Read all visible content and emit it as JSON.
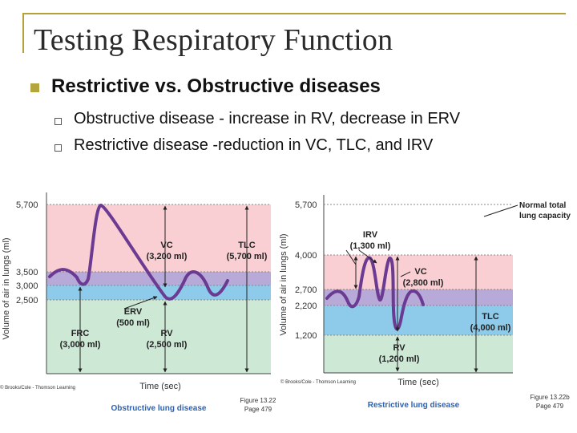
{
  "slide": {
    "title": "Testing Respiratory Function",
    "bullet": "Restrictive vs. Obstructive diseases",
    "sub_bullets": [
      "Obstructive disease - increase in RV, decrease in ERV",
      "Restrictive disease -reduction in VC, TLC, and IRV"
    ]
  },
  "figures": {
    "obstructive": {
      "y_axis_label": "Volume of air in lungs (ml)",
      "ticks": [
        "5,700",
        "3,500",
        "3,000",
        "2,500"
      ],
      "x_axis_label": "Time (sec)",
      "vc": [
        "VC",
        "(3,200 ml)"
      ],
      "tlc": [
        "TLC",
        "(5,700 ml)"
      ],
      "erv": [
        "ERV",
        "(500 ml)"
      ],
      "frc": [
        "FRC",
        "(3,000 ml)"
      ],
      "rv": [
        "RV",
        "(2,500 ml)"
      ],
      "copyright": "© Brooks/Cole - Thomson Learning",
      "caption": "Obstructive lung disease",
      "figure_ref": [
        "Figure 13.22",
        "Page 479"
      ]
    },
    "restrictive": {
      "y_axis_label": "Volume of air in lungs (ml)",
      "ticks": [
        "5,700",
        "4,000",
        "2,700",
        "2,200",
        "1,200"
      ],
      "x_axis_label": "Time (sec)",
      "normal": [
        "Normal total",
        "lung capacity"
      ],
      "irv": [
        "IRV",
        "(1,300 ml)"
      ],
      "vc": [
        "VC",
        "(2,800 ml)"
      ],
      "tlc": [
        "TLC",
        "(4,000 ml)"
      ],
      "rv": [
        "RV",
        "(1,200 ml)"
      ],
      "copyright": "© Brooks/Cole - Thomson Learning",
      "caption": "Restrictive lung disease",
      "figure_ref": [
        "Figure 13.22b",
        "Page 479"
      ]
    }
  },
  "colors": {
    "pink": "#f9cfd3",
    "purple": "#b7a9d8",
    "blue": "#8ecbea",
    "green": "#cde9d6",
    "curve": "#6b3a92",
    "accent": "#b5a53d"
  }
}
